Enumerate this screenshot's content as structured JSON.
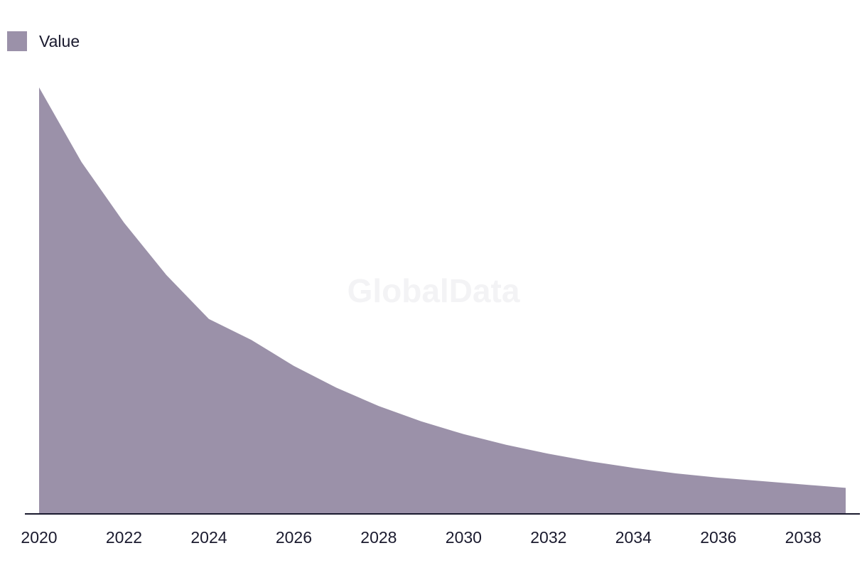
{
  "chart_data": {
    "type": "area",
    "x": [
      2020,
      2021,
      2022,
      2023,
      2024,
      2025,
      2026,
      2027,
      2028,
      2029,
      2030,
      2031,
      2032,
      2033,
      2034,
      2035,
      2036,
      2037,
      2038,
      2039
    ],
    "series": [
      {
        "name": "Value",
        "values": [
          100,
          82.5,
          68.3,
          56.0,
          45.7,
          40.8,
          34.7,
          29.6,
          25.3,
          21.7,
          18.7,
          16.2,
          14.1,
          12.3,
          10.8,
          9.5,
          8.5,
          7.7,
          6.9,
          6.1
        ]
      }
    ],
    "xticks": [
      "2020",
      "2022",
      "2024",
      "2026",
      "2028",
      "2030",
      "2032",
      "2034",
      "2036",
      "2038"
    ],
    "ylim": [
      0,
      100
    ],
    "grid": false,
    "legend_position": "top-left",
    "color": "#9b91a9"
  },
  "watermark": "GlobalData"
}
